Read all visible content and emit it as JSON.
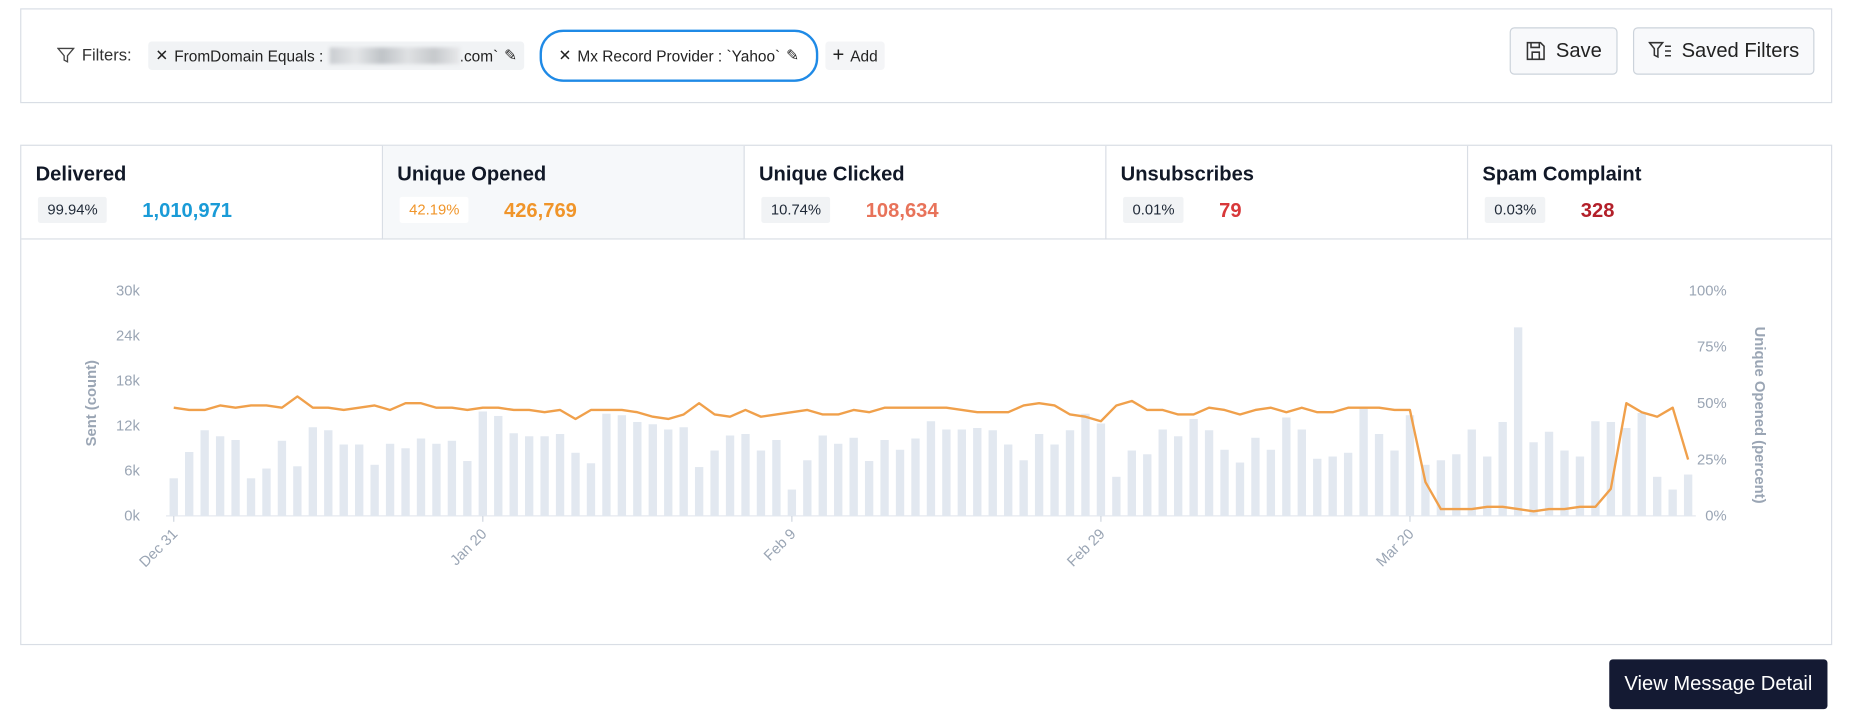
{
  "filters": {
    "label": "Filters:",
    "chips": [
      {
        "field": "FromDomain Equals :",
        "suffix": ".com`"
      },
      {
        "field": "Mx Record Provider : `Yahoo`"
      }
    ],
    "add": "Add",
    "save": "Save",
    "saved_filters": "Saved Filters"
  },
  "stats": [
    {
      "title": "Delivered",
      "percent": "99.94%",
      "count": "1,010,971"
    },
    {
      "title": "Unique Opened",
      "percent": "42.19%",
      "count": "426,769"
    },
    {
      "title": "Unique Clicked",
      "percent": "10.74%",
      "count": "108,634"
    },
    {
      "title": "Unsubscribes",
      "percent": "0.01%",
      "count": "79"
    },
    {
      "title": "Spam Complaint",
      "percent": "0.03%",
      "count": "328"
    }
  ],
  "view_detail": "View Message Detail",
  "chart_data": {
    "type": "bar-line",
    "y_label": "Sent (count)",
    "y2_label": "Unique Opened (percent)",
    "categories": [
      "Dec 31",
      null,
      null,
      null,
      null,
      null,
      null,
      null,
      null,
      null,
      null,
      null,
      null,
      null,
      null,
      null,
      null,
      null,
      null,
      null,
      "Jan 20",
      null,
      null,
      null,
      null,
      null,
      null,
      null,
      null,
      null,
      null,
      null,
      null,
      null,
      null,
      null,
      null,
      null,
      null,
      null,
      "Feb 9",
      null,
      null,
      null,
      null,
      null,
      null,
      null,
      null,
      null,
      null,
      null,
      null,
      null,
      null,
      null,
      null,
      null,
      null,
      null,
      "Feb 29",
      null,
      null,
      null,
      null,
      null,
      null,
      null,
      null,
      null,
      null,
      null,
      null,
      null,
      null,
      null,
      null,
      null,
      null,
      null,
      "Mar 20",
      null,
      null,
      null,
      null,
      null,
      null,
      null,
      null,
      null,
      null,
      null,
      null,
      null,
      null,
      null,
      null,
      null,
      null
    ],
    "ylim": [
      0,
      30000
    ],
    "yticks": [
      {
        "value": 0,
        "label": "0k"
      },
      {
        "value": 6000,
        "label": "6k"
      },
      {
        "value": 12000,
        "label": "12k"
      },
      {
        "value": 18000,
        "label": "18k"
      },
      {
        "value": 24000,
        "label": "24k"
      },
      {
        "value": 30000,
        "label": "30k"
      }
    ],
    "y2lim": [
      0,
      100
    ],
    "y2ticks": [
      {
        "value": 0,
        "label": "0%"
      },
      {
        "value": 25,
        "label": "25%"
      },
      {
        "value": 50,
        "label": "50%"
      },
      {
        "value": 75,
        "label": "75%"
      },
      {
        "value": 100,
        "label": "100%"
      }
    ],
    "series": [
      {
        "type": "bar",
        "color": "#e2e8f0",
        "values": [
          5000,
          8500,
          11400,
          10600,
          10100,
          5000,
          6300,
          10000,
          6600,
          11800,
          11400,
          9500,
          9500,
          6800,
          9600,
          9000,
          10300,
          9600,
          10000,
          7300,
          13900,
          13300,
          11000,
          10600,
          10600,
          10900,
          8400,
          7000,
          13600,
          13400,
          12500,
          12200,
          11500,
          11800,
          6500,
          8700,
          10700,
          10900,
          8700,
          10100,
          3500,
          7400,
          10700,
          9600,
          10400,
          7300,
          10100,
          8800,
          10300,
          12600,
          11500,
          11500,
          11700,
          11400,
          9500,
          7400,
          10900,
          9500,
          11400,
          13600,
          12300,
          5200,
          8700,
          8200,
          11500,
          10600,
          12900,
          11400,
          8800,
          7100,
          10400,
          8800,
          13100,
          11500,
          7600,
          7900,
          8400,
          14400,
          10900,
          8700,
          13400,
          6800,
          7400,
          8200,
          11500,
          7900,
          12500,
          25100,
          9800,
          11200,
          8700,
          7900,
          12600,
          12500,
          11700,
          13700,
          5200,
          3500,
          5500
        ]
      },
      {
        "type": "line",
        "axis": "y2",
        "color": "#f0a04b",
        "values": [
          48,
          47,
          47,
          49,
          48,
          49,
          49,
          48,
          53,
          48,
          48,
          47,
          48,
          49,
          47,
          50,
          50,
          48,
          48,
          47,
          48,
          48,
          47,
          47,
          46,
          47,
          43,
          47,
          47,
          47,
          46,
          44,
          43,
          45,
          50,
          45,
          44,
          47,
          44,
          45,
          46,
          47,
          45,
          45,
          47,
          46,
          48,
          48,
          48,
          48,
          48,
          47,
          46,
          46,
          46,
          49,
          50,
          49,
          45,
          44,
          42,
          49,
          51,
          47,
          47,
          45,
          45,
          48,
          47,
          45,
          47,
          48,
          46,
          48,
          46,
          46,
          48,
          48,
          48,
          47,
          47,
          15,
          3,
          3,
          3,
          4,
          4,
          3,
          2,
          3,
          3,
          4,
          4,
          12,
          50,
          46,
          44,
          48,
          25
        ]
      }
    ]
  }
}
